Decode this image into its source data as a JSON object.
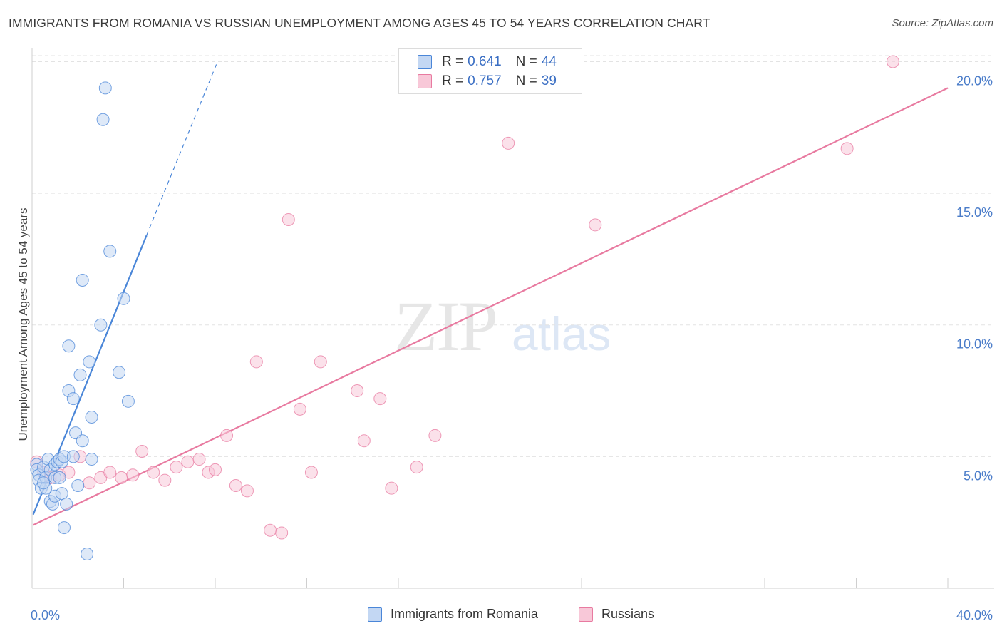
{
  "header": {
    "title": "IMMIGRANTS FROM ROMANIA VS RUSSIAN UNEMPLOYMENT AMONG AGES 45 TO 54 YEARS CORRELATION CHART",
    "source": "Source: ZipAtlas.com"
  },
  "watermark": {
    "zip": "ZIP",
    "atlas": "atlas"
  },
  "legend": {
    "rows": [
      {
        "r_label": "R =",
        "r_value": "0.641",
        "n_label": "N =",
        "n_value": "44"
      },
      {
        "r_label": "R =",
        "r_value": "0.757",
        "n_label": "N =",
        "n_value": "39"
      }
    ]
  },
  "bottom_legend": {
    "series1": "Immigrants from Romania",
    "series2": "Russians"
  },
  "chart_data": {
    "type": "scatter",
    "title": "IMMIGRANTS FROM ROMANIA VS RUSSIAN UNEMPLOYMENT AMONG AGES 45 TO 54 YEARS CORRELATION CHART",
    "xlabel": "",
    "ylabel": "Unemployment Among Ages 45 to 54 years",
    "xlim": [
      0,
      40
    ],
    "ylim": [
      0,
      20.5
    ],
    "x_tick_labels": [
      "0.0%",
      "40.0%"
    ],
    "y_ticks": [
      5,
      10,
      15,
      20
    ],
    "y_tick_labels": [
      "5.0%",
      "10.0%",
      "15.0%",
      "20.0%"
    ],
    "grid": true,
    "colors": {
      "series1": "#4a86d8",
      "series2": "#e87aa0",
      "series1_fill": "#c3d7f3",
      "series2_fill": "#f8c8d8"
    },
    "series": [
      {
        "name": "Immigrants from Romania",
        "r": 0.641,
        "n": 44,
        "trend": {
          "x0": 0.05,
          "y0": 2.8,
          "x1": 5.0,
          "y1": 13.4,
          "dash_to_x": 8.1,
          "dash_to_y": 20.0
        },
        "points": [
          [
            0.2,
            4.7
          ],
          [
            0.2,
            4.5
          ],
          [
            0.3,
            4.3
          ],
          [
            0.3,
            4.1
          ],
          [
            0.4,
            3.8
          ],
          [
            0.5,
            4.6
          ],
          [
            0.6,
            4.2
          ],
          [
            0.6,
            3.8
          ],
          [
            0.7,
            4.9
          ],
          [
            0.8,
            4.5
          ],
          [
            0.8,
            3.3
          ],
          [
            0.9,
            3.2
          ],
          [
            1.0,
            4.7
          ],
          [
            1.0,
            3.5
          ],
          [
            1.0,
            4.2
          ],
          [
            1.1,
            4.8
          ],
          [
            1.2,
            4.9
          ],
          [
            1.3,
            4.8
          ],
          [
            1.3,
            3.6
          ],
          [
            1.4,
            5.0
          ],
          [
            1.4,
            2.3
          ],
          [
            1.5,
            3.2
          ],
          [
            1.6,
            9.2
          ],
          [
            1.6,
            7.5
          ],
          [
            1.8,
            5.0
          ],
          [
            1.8,
            7.2
          ],
          [
            1.9,
            5.9
          ],
          [
            2.0,
            3.9
          ],
          [
            2.1,
            8.1
          ],
          [
            2.2,
            5.6
          ],
          [
            2.2,
            11.7
          ],
          [
            2.4,
            1.3
          ],
          [
            2.5,
            8.6
          ],
          [
            2.6,
            6.5
          ],
          [
            2.6,
            4.9
          ],
          [
            3.0,
            10.0
          ],
          [
            3.1,
            17.8
          ],
          [
            3.2,
            19.0
          ],
          [
            3.4,
            12.8
          ],
          [
            3.8,
            8.2
          ],
          [
            4.0,
            11.0
          ],
          [
            4.2,
            7.1
          ],
          [
            0.5,
            4.0
          ],
          [
            1.2,
            4.2
          ]
        ]
      },
      {
        "name": "Russians",
        "r": 0.757,
        "n": 39,
        "trend": {
          "x0": 0.05,
          "y0": 2.4,
          "x1": 40.0,
          "y1": 19.0
        },
        "points": [
          [
            0.2,
            4.8
          ],
          [
            0.5,
            4.4
          ],
          [
            0.8,
            4.2
          ],
          [
            1.2,
            4.3
          ],
          [
            1.6,
            4.4
          ],
          [
            2.1,
            5.0
          ],
          [
            2.5,
            4.0
          ],
          [
            3.0,
            4.2
          ],
          [
            3.4,
            4.4
          ],
          [
            3.9,
            4.2
          ],
          [
            4.4,
            4.3
          ],
          [
            4.8,
            5.2
          ],
          [
            5.3,
            4.4
          ],
          [
            5.8,
            4.1
          ],
          [
            6.3,
            4.6
          ],
          [
            6.8,
            4.8
          ],
          [
            7.3,
            4.9
          ],
          [
            7.7,
            4.4
          ],
          [
            8.0,
            4.5
          ],
          [
            8.5,
            5.8
          ],
          [
            8.9,
            3.9
          ],
          [
            9.4,
            3.7
          ],
          [
            9.8,
            8.6
          ],
          [
            10.4,
            2.2
          ],
          [
            10.9,
            2.1
          ],
          [
            11.2,
            14.0
          ],
          [
            11.7,
            6.8
          ],
          [
            12.2,
            4.4
          ],
          [
            12.6,
            8.6
          ],
          [
            14.2,
            7.5
          ],
          [
            14.5,
            5.6
          ],
          [
            15.2,
            7.2
          ],
          [
            15.7,
            3.8
          ],
          [
            16.8,
            4.6
          ],
          [
            17.6,
            5.8
          ],
          [
            20.8,
            16.9
          ],
          [
            24.6,
            13.8
          ],
          [
            35.6,
            16.7
          ],
          [
            37.6,
            20.0
          ]
        ]
      }
    ]
  }
}
